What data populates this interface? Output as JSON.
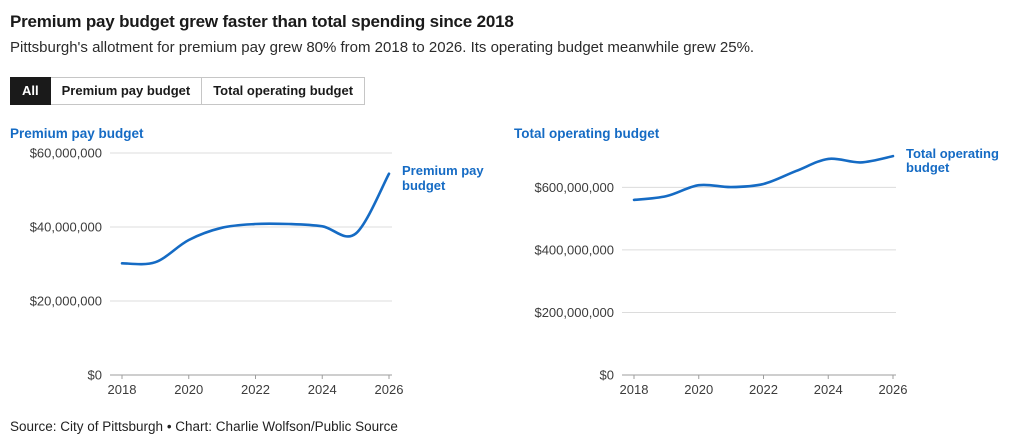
{
  "header": {
    "title": "Premium pay budget grew faster than total spending since 2018",
    "subtitle": "Pittsburgh's allotment for premium pay grew 80% from 2018 to 2026. Its operating budget meanwhile grew 25%."
  },
  "filters": [
    {
      "label": "All",
      "active": true
    },
    {
      "label": "Premium pay budget",
      "active": false
    },
    {
      "label": "Total operating budget",
      "active": false
    }
  ],
  "colors": {
    "accent_blue": "#156bc4",
    "active_button_bg": "#1a1a1a",
    "gridline": "#dcdcdc",
    "baseline": "#9d9d9d",
    "tick_text": "#3c3c3c"
  },
  "chart_data": [
    {
      "type": "line",
      "title": "Premium pay budget",
      "series_label": "Premium pay budget",
      "x": [
        2018,
        2019,
        2020,
        2021,
        2022,
        2023,
        2024,
        2025,
        2026
      ],
      "values": [
        30200000,
        30500000,
        36500000,
        39800000,
        40800000,
        40800000,
        40200000,
        38200000,
        54400000
      ],
      "ylim": [
        0,
        60000000
      ],
      "yticks": [
        0,
        20000000,
        40000000,
        60000000
      ],
      "ytick_labels": [
        "$0",
        "$20,000,000",
        "$40,000,000",
        "$60,000,000"
      ],
      "xticks": [
        2018,
        2020,
        2022,
        2024,
        2026
      ],
      "grid": true,
      "legend_position": "end-of-line",
      "line_color": "#156bc4"
    },
    {
      "type": "line",
      "title": "Total operating budget",
      "series_label": "Total operating budget",
      "x": [
        2018,
        2019,
        2020,
        2021,
        2022,
        2023,
        2024,
        2025,
        2026
      ],
      "values": [
        560000000,
        572000000,
        607000000,
        601000000,
        611000000,
        652000000,
        691000000,
        680000000,
        700000000
      ],
      "ylim": [
        0,
        710000000
      ],
      "yticks": [
        0,
        200000000,
        400000000,
        600000000
      ],
      "ytick_labels": [
        "$0",
        "$200,000,000",
        "$400,000,000",
        "$600,000,000"
      ],
      "xticks": [
        2018,
        2020,
        2022,
        2024,
        2026
      ],
      "grid": true,
      "legend_position": "end-of-line",
      "line_color": "#156bc4"
    }
  ],
  "footer": {
    "source": "Source: City of Pittsburgh • Chart: Charlie Wolfson/Public Source"
  }
}
